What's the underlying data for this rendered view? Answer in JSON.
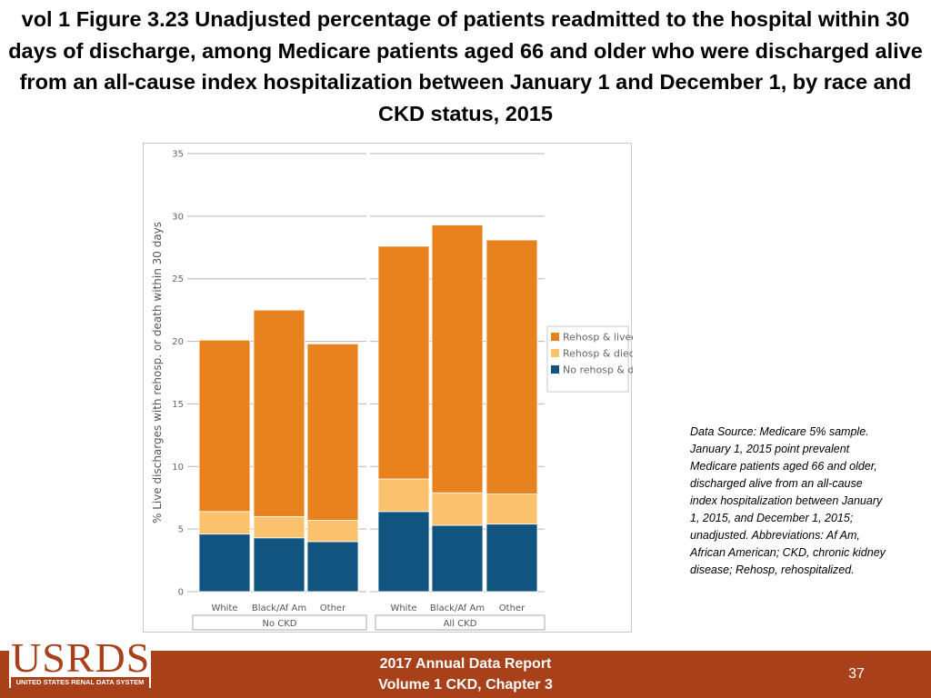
{
  "title": "vol 1 Figure 3.23 Unadjusted percentage of patients readmitted to the hospital within 30 days of discharge, among Medicare patients aged 66 and older who were discharged alive from an all-cause index hospitalization between January 1 and December 1, by race and CKD status, 2015",
  "source_note": "Data Source: Medicare 5% sample. January 1, 2015 point prevalent Medicare patients aged 66 and older, discharged alive from an all-cause index hospitalization between January 1, 2015, and December 1, 2015; unadjusted. Abbreviations: Af Am, African American; CKD, chronic kidney disease; Rehosp, rehospitalized.",
  "footer": {
    "report_line1": "2017 Annual Data Report",
    "report_line2": "Volume 1 CKD, Chapter 3",
    "page_number": "37",
    "logo_text": "USRDS",
    "logo_subtext": "UNITED STATES RENAL DATA SYSTEM"
  },
  "colors": {
    "rehosp_lived": "#e8821e",
    "rehosp_died": "#fcc16c",
    "no_rehosp_died": "#11547f",
    "footer_bg": "#a8411a"
  },
  "chart_data": {
    "type": "bar",
    "stacked": true,
    "title": "",
    "xlabel": "",
    "ylabel": "% Live discharges with rehosp. or death within 30 days",
    "ylim": [
      0,
      35
    ],
    "yticks": [
      0,
      5,
      10,
      15,
      20,
      25,
      30,
      35
    ],
    "groups": [
      {
        "label": "No CKD",
        "categories": [
          "White",
          "Black/Af Am",
          "Other"
        ]
      },
      {
        "label": "All CKD",
        "categories": [
          "White",
          "Black/Af Am",
          "Other"
        ]
      }
    ],
    "series": [
      {
        "name": "No rehosp & died",
        "color": "#11547f",
        "values": [
          4.6,
          4.3,
          4.0,
          6.4,
          5.3,
          5.4
        ]
      },
      {
        "name": "Rehosp & died",
        "color": "#fcc16c",
        "values": [
          1.8,
          1.7,
          1.7,
          2.6,
          2.6,
          2.4
        ]
      },
      {
        "name": "Rehosp & lived",
        "color": "#e8821e",
        "values": [
          13.7,
          16.5,
          14.1,
          18.6,
          21.4,
          20.3
        ]
      }
    ],
    "legend": [
      "Rehosp & lived",
      "Rehosp & died",
      "No rehosp & died"
    ],
    "legend_position": "right"
  }
}
